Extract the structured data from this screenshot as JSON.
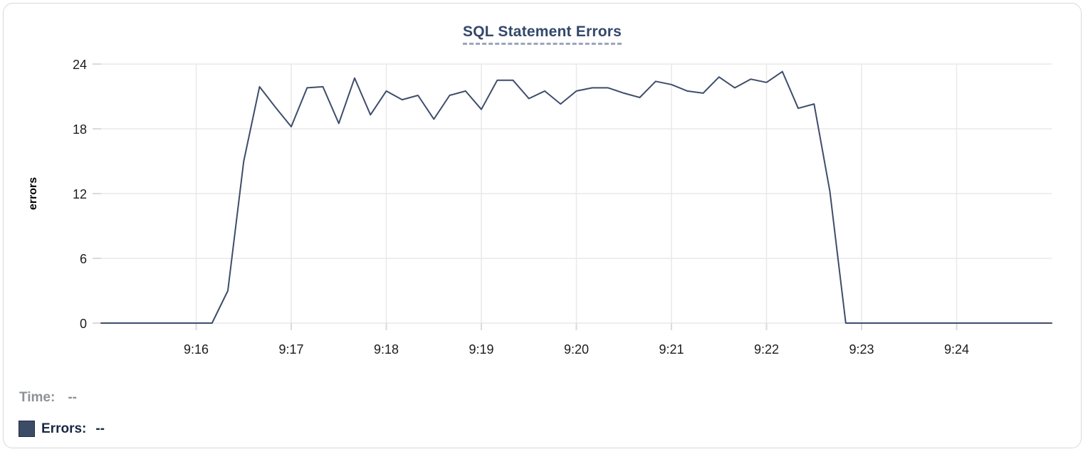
{
  "header": {
    "title": "SQL Statement Errors"
  },
  "readout": {
    "time_label": "Time:",
    "time_value": "--",
    "errors_label": "Errors:",
    "errors_value": "--"
  },
  "colors": {
    "title_text": "#33486b",
    "title_underline": "#9aa5bb",
    "series_line": "#3e4d6b",
    "legend_swatch_fill": "#3d4c66",
    "legend_swatch_border": "#20294a",
    "errors_readout_text": "#1a2745",
    "time_readout_text": "#8d9196",
    "axis_text": "#1c1c1e",
    "gridline": "#e9e9e9",
    "tick_mark": "#dadada",
    "card_border": "#d9d9d9"
  },
  "chart_data": {
    "type": "line",
    "title": "SQL Statement Errors",
    "xlabel": "",
    "ylabel": "errors",
    "ylim": [
      0,
      24
    ],
    "y_ticks": [
      0,
      6,
      12,
      18,
      24
    ],
    "x_ticks": [
      "9:16",
      "9:17",
      "9:18",
      "9:19",
      "9:20",
      "9:21",
      "9:22",
      "9:23",
      "9:24"
    ],
    "x_range": [
      "9:15:00",
      "9:25:00"
    ],
    "grid": true,
    "legend_position": "bottom-left",
    "series": [
      {
        "name": "Errors",
        "color": "#3e4d6b",
        "start_time": "9:15:00",
        "interval_seconds": 10,
        "values": [
          0,
          0,
          0,
          0,
          0,
          0,
          0,
          0,
          3,
          15,
          21.9,
          20,
          18.2,
          21.8,
          21.9,
          18.5,
          22.7,
          19.3,
          21.5,
          20.7,
          21.1,
          18.9,
          21.1,
          21.5,
          19.8,
          22.5,
          22.5,
          20.8,
          21.5,
          20.3,
          21.5,
          21.8,
          21.8,
          21.3,
          20.9,
          22.4,
          22.1,
          21.5,
          21.3,
          22.8,
          21.8,
          22.6,
          22.3,
          23.3,
          19.9,
          20.3,
          12.2,
          0,
          0,
          0,
          0,
          0,
          0,
          0,
          0,
          0,
          0,
          0,
          0,
          0,
          0
        ]
      }
    ]
  }
}
